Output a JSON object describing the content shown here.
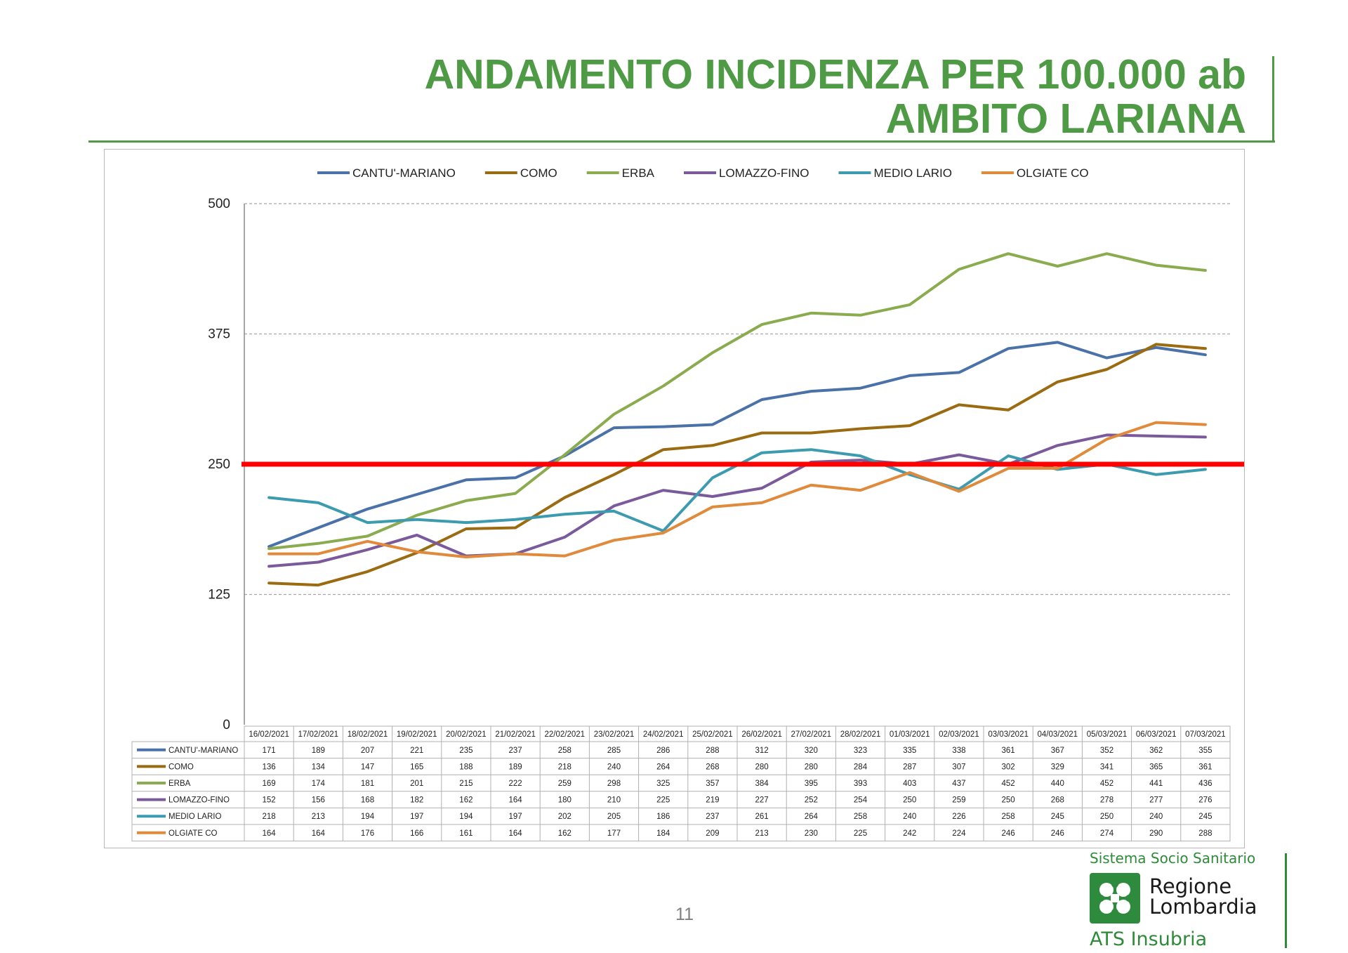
{
  "title": {
    "line1": "ANDAMENTO INCIDENZA PER 100.000 ab",
    "line2": "AMBITO LARIANA"
  },
  "page_number": "11",
  "logo": {
    "top_text": "Sistema Socio Sanitario",
    "name_line1": "Regione",
    "name_line2": "Lombardia",
    "bottom_text": "ATS Insubria"
  },
  "chart_data": {
    "type": "line",
    "title": "",
    "xlabel": "",
    "ylabel": "",
    "ylim": [
      0,
      500
    ],
    "yticks": [
      0,
      125,
      250,
      375,
      500
    ],
    "grid": true,
    "legend": "top",
    "threshold": {
      "value": 250,
      "color": "#ff0000"
    },
    "categories": [
      "16/02/2021",
      "17/02/2021",
      "18/02/2021",
      "19/02/2021",
      "20/02/2021",
      "21/02/2021",
      "22/02/2021",
      "23/02/2021",
      "24/02/2021",
      "25/02/2021",
      "26/02/2021",
      "27/02/2021",
      "28/02/2021",
      "01/03/2021",
      "02/03/2021",
      "03/03/2021",
      "04/03/2021",
      "05/03/2021",
      "06/03/2021",
      "07/03/2021"
    ],
    "series": [
      {
        "name": "CANTU'-MARIANO",
        "color": "#4a72a8",
        "values": [
          171,
          189,
          207,
          221,
          235,
          237,
          258,
          285,
          286,
          288,
          312,
          320,
          323,
          335,
          338,
          361,
          367,
          352,
          362,
          355
        ]
      },
      {
        "name": "COMO",
        "color": "#9a6b10",
        "values": [
          136,
          134,
          147,
          165,
          188,
          189,
          218,
          240,
          264,
          268,
          280,
          280,
          284,
          287,
          307,
          302,
          329,
          341,
          365,
          361
        ]
      },
      {
        "name": "ERBA",
        "color": "#8aab4e",
        "values": [
          169,
          174,
          181,
          201,
          215,
          222,
          259,
          298,
          325,
          357,
          384,
          395,
          393,
          403,
          437,
          452,
          440,
          452,
          441,
          436
        ]
      },
      {
        "name": "LOMAZZO-FINO",
        "color": "#7a5a9a",
        "values": [
          152,
          156,
          168,
          182,
          162,
          164,
          180,
          210,
          225,
          219,
          227,
          252,
          254,
          250,
          259,
          250,
          268,
          278,
          277,
          276
        ]
      },
      {
        "name": "MEDIO LARIO",
        "color": "#3d9bb0",
        "values": [
          218,
          213,
          194,
          197,
          194,
          197,
          202,
          205,
          186,
          237,
          261,
          264,
          258,
          240,
          226,
          258,
          245,
          250,
          240,
          245
        ]
      },
      {
        "name": "OLGIATE CO",
        "color": "#e08a3c",
        "values": [
          164,
          164,
          176,
          166,
          161,
          164,
          162,
          177,
          184,
          209,
          213,
          230,
          225,
          242,
          224,
          246,
          246,
          274,
          290,
          288
        ]
      }
    ]
  }
}
